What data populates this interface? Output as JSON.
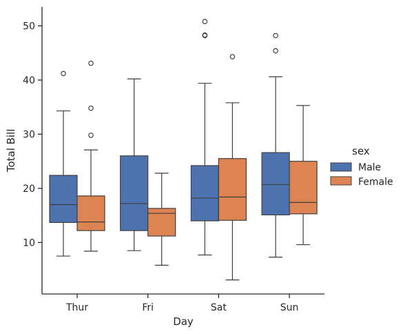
{
  "chart_data": {
    "type": "box",
    "xlabel": "Day",
    "ylabel": "Total Bill",
    "categories": [
      "Thur",
      "Fri",
      "Sat",
      "Sun"
    ],
    "ylim": [
      0.5,
      53.5
    ],
    "yticks": [
      10,
      20,
      30,
      40,
      50
    ],
    "legend": {
      "title": "sex",
      "position": "right"
    },
    "series": [
      {
        "name": "Male",
        "color": "#4c72b0",
        "boxes": [
          {
            "category": "Thur",
            "whisker_low": 7.5,
            "q1": 13.7,
            "median": 17.0,
            "q3": 22.4,
            "whisker_high": 34.3,
            "outliers": [
              41.2
            ]
          },
          {
            "category": "Fri",
            "whisker_low": 8.5,
            "q1": 12.2,
            "median": 17.2,
            "q3": 26.0,
            "whisker_high": 40.2,
            "outliers": []
          },
          {
            "category": "Sat",
            "whisker_low": 7.7,
            "q1": 14.0,
            "median": 18.2,
            "q3": 24.2,
            "whisker_high": 39.4,
            "outliers": [
              48.3,
              48.2,
              50.8
            ]
          },
          {
            "category": "Sun",
            "whisker_low": 7.3,
            "q1": 15.1,
            "median": 20.7,
            "q3": 26.6,
            "whisker_high": 40.6,
            "outliers": [
              45.4,
              48.2
            ]
          }
        ]
      },
      {
        "name": "Female",
        "color": "#dd8452",
        "boxes": [
          {
            "category": "Thur",
            "whisker_low": 8.4,
            "q1": 12.2,
            "median": 13.8,
            "q3": 18.6,
            "whisker_high": 27.1,
            "outliers": [
              29.8,
              34.8,
              43.1
            ]
          },
          {
            "category": "Fri",
            "whisker_low": 5.8,
            "q1": 11.2,
            "median": 15.4,
            "q3": 16.3,
            "whisker_high": 22.8,
            "outliers": []
          },
          {
            "category": "Sat",
            "whisker_low": 3.1,
            "q1": 14.1,
            "median": 18.4,
            "q3": 25.5,
            "whisker_high": 35.8,
            "outliers": [
              44.3
            ]
          },
          {
            "category": "Sun",
            "whisker_low": 9.6,
            "q1": 15.3,
            "median": 17.4,
            "q3": 25.0,
            "whisker_high": 35.3,
            "outliers": []
          }
        ]
      }
    ]
  }
}
